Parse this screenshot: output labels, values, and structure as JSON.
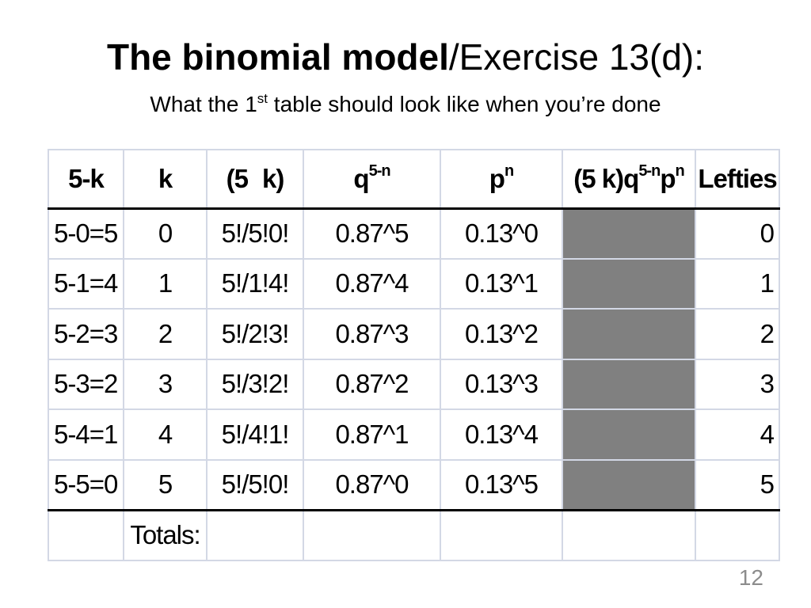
{
  "title": {
    "bold_part": "The binomial model",
    "rest": "/Exercise 13(d):"
  },
  "subtitle": {
    "before": "What the 1",
    "sup": "st",
    "after": " table should look like when you’re done"
  },
  "table": {
    "headers": {
      "col1": "5-k",
      "col2": "k",
      "col3_open": "(5",
      "col3_close": "k)",
      "col4_base": "q",
      "col4_exp": "5-n",
      "col5_base": "p",
      "col5_exp": "n",
      "col6_prefix": "(5 k)q",
      "col6_exp1": "5-n",
      "col6_mid": "p",
      "col6_exp2": "n",
      "col7": "Lefties"
    },
    "rows": [
      {
        "fivek": "5-0=5",
        "k": "0",
        "combo": "5!/5!0!",
        "q": "0.87^5",
        "p": "0.13^0",
        "lefties": "0"
      },
      {
        "fivek": "5-1=4",
        "k": "1",
        "combo": "5!/1!4!",
        "q": "0.87^4",
        "p": "0.13^1",
        "lefties": "1"
      },
      {
        "fivek": "5-2=3",
        "k": "2",
        "combo": "5!/2!3!",
        "q": "0.87^3",
        "p": "0.13^2",
        "lefties": "2"
      },
      {
        "fivek": "5-3=2",
        "k": "3",
        "combo": "5!/3!2!",
        "q": "0.87^2",
        "p": "0.13^3",
        "lefties": "3"
      },
      {
        "fivek": "5-4=1",
        "k": "4",
        "combo": "5!/4!1!",
        "q": "0.87^1",
        "p": "0.13^4",
        "lefties": "4"
      },
      {
        "fivek": "5-5=0",
        "k": "5",
        "combo": "5!/5!0!",
        "q": "0.87^0",
        "p": "0.13^5",
        "lefties": "5"
      }
    ],
    "totals_label": "Totals:"
  },
  "page_number": "12",
  "colors": {
    "shaded_cell": "#808080",
    "grid_line": "#d3d8e5",
    "page_number": "#8c8c8c"
  }
}
